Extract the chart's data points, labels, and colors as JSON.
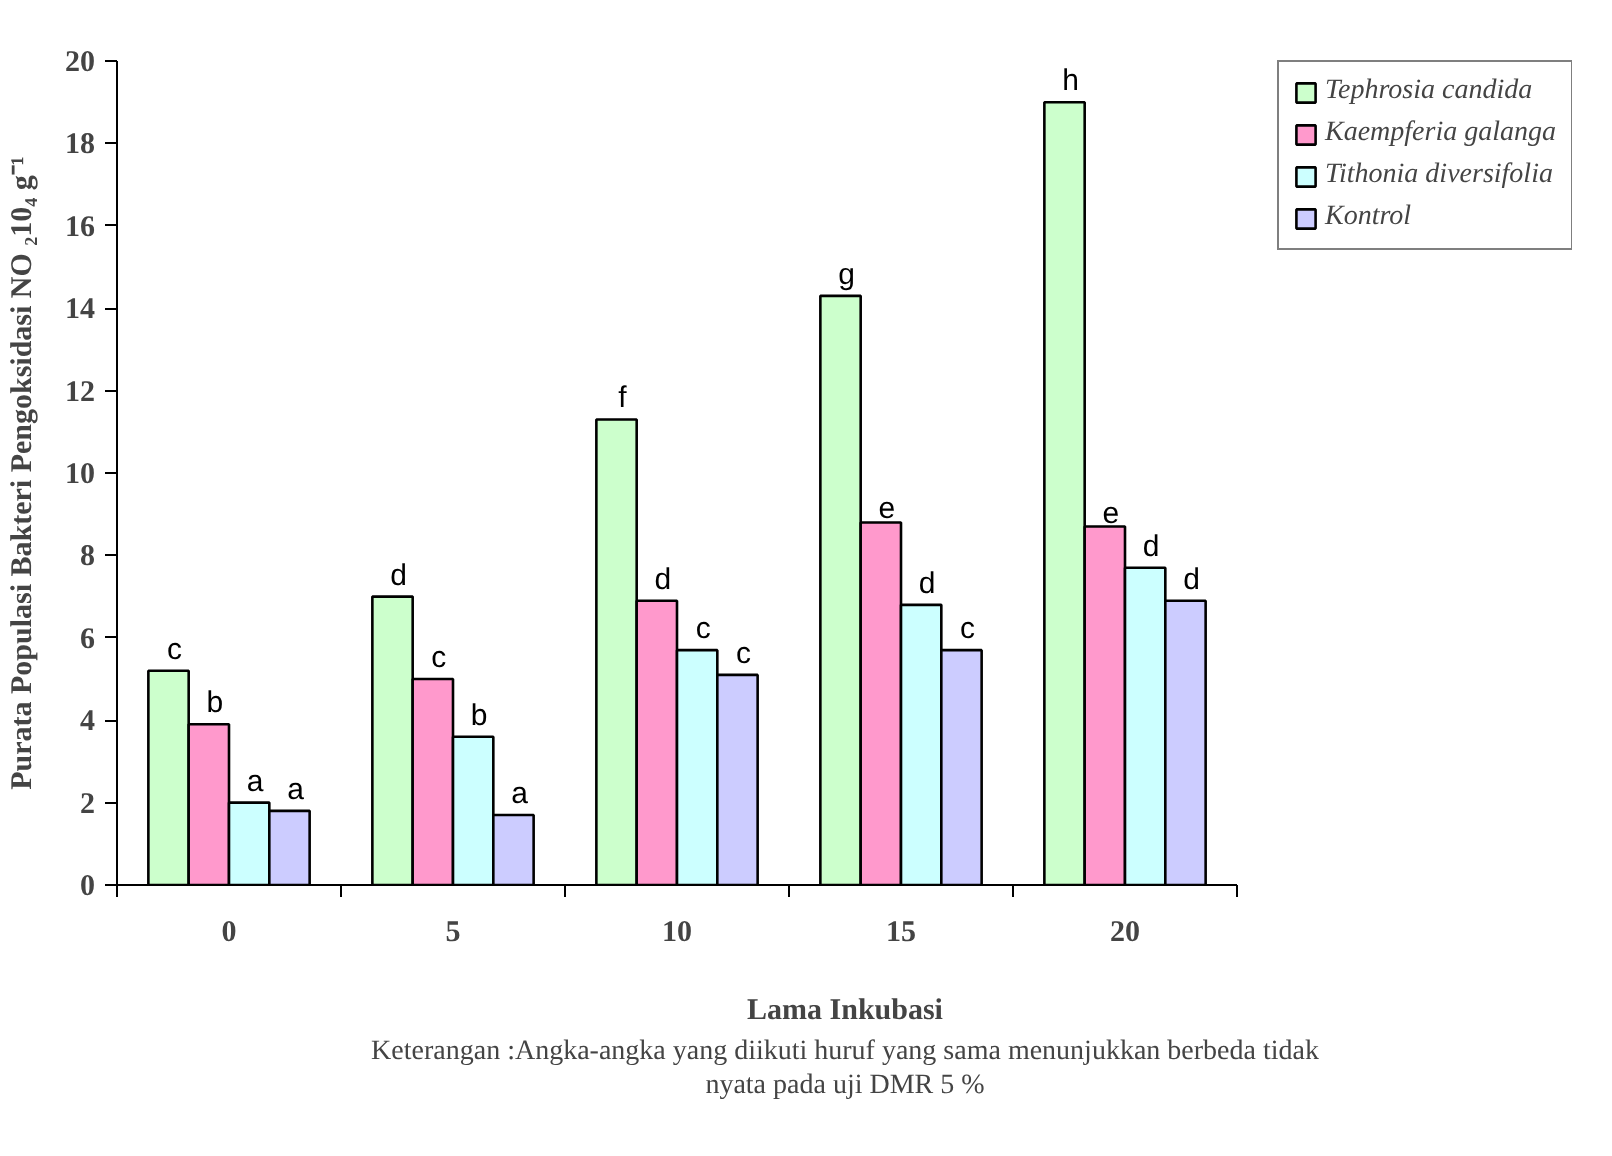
{
  "chart_data": {
    "type": "bar",
    "categories": [
      "0",
      "5",
      "10",
      "15",
      "20"
    ],
    "series": [
      {
        "name": "Tephrosia candida",
        "color": "#ccffcc",
        "values": [
          5.2,
          7.0,
          11.3,
          14.3,
          19.0
        ],
        "value_labels": [
          "c",
          "d",
          "f",
          "g",
          "h"
        ]
      },
      {
        "name": "Kaempferia galanga",
        "color": "#ff99cc",
        "values": [
          3.9,
          5.0,
          6.9,
          8.8,
          8.7
        ],
        "value_labels": [
          "b",
          "c",
          "d",
          "e",
          "e"
        ]
      },
      {
        "name": "Tithonia diversifolia",
        "color": "#ccffff",
        "values": [
          2.0,
          3.6,
          5.7,
          6.8,
          7.7
        ],
        "value_labels": [
          "a",
          "b",
          "c",
          "d",
          "d"
        ]
      },
      {
        "name": "Kontrol",
        "color": "#ccccff",
        "values": [
          1.8,
          1.7,
          5.1,
          5.7,
          6.9
        ],
        "value_labels": [
          "a",
          "a",
          "c",
          "c",
          "d"
        ]
      }
    ],
    "ylim": [
      0,
      20
    ],
    "yticks": [
      0,
      2,
      4,
      6,
      8,
      10,
      12,
      14,
      16,
      18,
      20
    ],
    "xlabel": "Lama Inkubasi",
    "ylabel": "Purata Populasi Bakteri Pengoksidasi NO ₂10₄ g⁻¹",
    "annotations": [
      "Keterangan :Angka-angka yang diikuti huruf yang sama menunjukkan berbeda tidak nyata pada uji DMR 5 %"
    ],
    "grid": false,
    "legend": "top right"
  }
}
